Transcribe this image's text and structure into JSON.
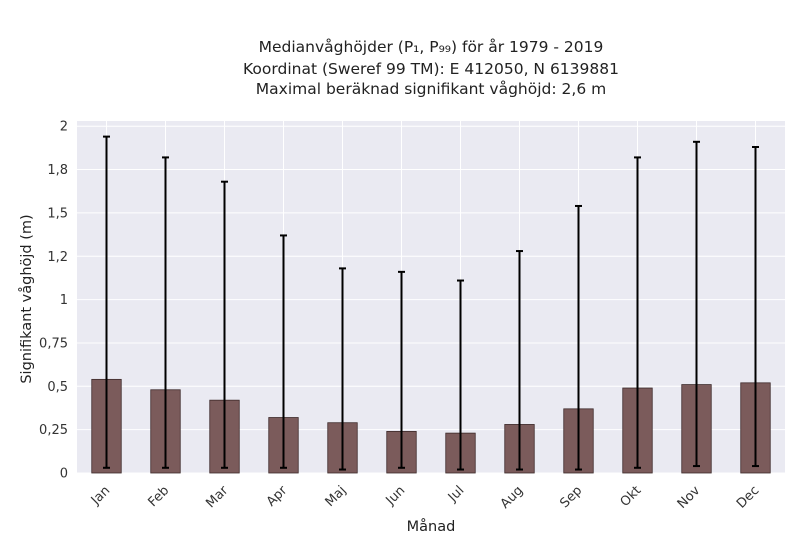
{
  "chart_data": {
    "type": "bar",
    "title_lines": [
      "Medianvåghöjder (P₁, P₉₉) för år 1979 - 2019",
      "Koordinat (Sweref 99 TM): E 412050, N 6139881",
      "Maximal beräknad signifikant våghöjd: 2,6 m"
    ],
    "xlabel": "Månad",
    "ylabel": "Signifikant våghöjd (m)",
    "categories": [
      "Jan",
      "Feb",
      "Mar",
      "Apr",
      "Maj",
      "Jun",
      "Jul",
      "Aug",
      "Sep",
      "Okt",
      "Nov",
      "Dec"
    ],
    "series": [
      {
        "values": [
          0.54,
          0.48,
          0.42,
          0.32,
          0.29,
          0.24,
          0.23,
          0.28,
          0.37,
          0.49,
          0.51,
          0.52
        ],
        "err_low": [
          0.03,
          0.03,
          0.03,
          0.03,
          0.02,
          0.03,
          0.02,
          0.02,
          0.02,
          0.03,
          0.04,
          0.04
        ],
        "err_high": [
          1.94,
          1.82,
          1.68,
          1.37,
          1.18,
          1.16,
          1.11,
          1.28,
          1.54,
          1.82,
          1.91,
          1.88
        ]
      }
    ],
    "yticks": [
      0,
      0.25,
      0.5,
      0.75,
      1,
      1.25,
      1.5,
      1.75,
      2
    ],
    "ytick_labels": [
      "0",
      "0,25",
      "0,5",
      "0,75",
      "1",
      "1,2",
      "1,5",
      "1,8",
      "2"
    ],
    "ylim": [
      0,
      2.03
    ],
    "grid": true,
    "colors": {
      "bar": "#7b5b5b",
      "bar_edge": "#3d2a2a",
      "plot_bg": "#eaeaf2",
      "grid": "#ffffff",
      "errorbar": "#000000"
    }
  }
}
